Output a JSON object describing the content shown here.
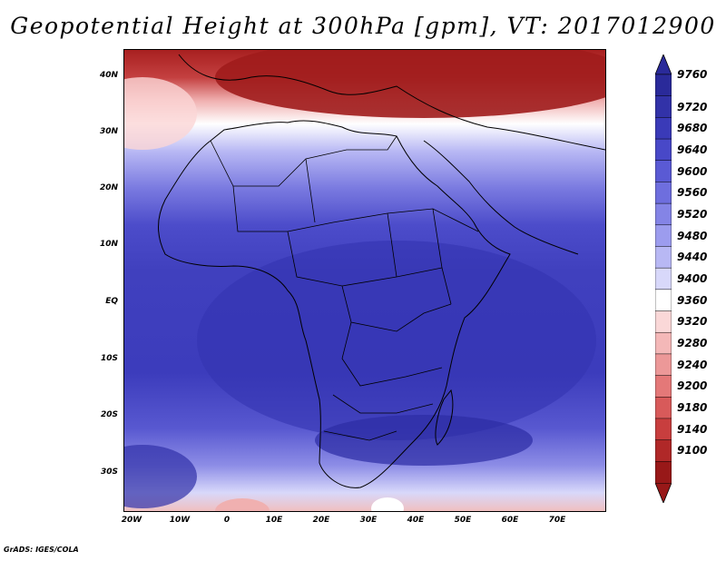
{
  "title": "Geopotential Height at 300hPa [gpm], VT: 2017012900",
  "credit": "GrADS: IGES/COLA",
  "lat_labels": [
    "40N",
    "30N",
    "20N",
    "10N",
    "EQ",
    "10S",
    "20S",
    "30S"
  ],
  "lon_labels": [
    "20W",
    "10W",
    "0",
    "10E",
    "20E",
    "30E",
    "40E",
    "50E",
    "60E",
    "70E"
  ],
  "colorbar": {
    "levels": [
      "9760",
      "9720",
      "9680",
      "9640",
      "9600",
      "9560",
      "9520",
      "9480",
      "9440",
      "9400",
      "9360",
      "9320",
      "9280",
      "9240",
      "9200",
      "9180",
      "9140",
      "9100"
    ],
    "colors": [
      "#2a2a9a",
      "#3232a8",
      "#3a3ab8",
      "#4848c8",
      "#5a5ad4",
      "#6e6ede",
      "#8484e6",
      "#9c9cee",
      "#b8b8f4",
      "#d8d8fa",
      "#ffffff",
      "#fad8d8",
      "#f4b8b8",
      "#ec9898",
      "#e47878",
      "#d85a5a",
      "#c83e3e",
      "#b02828",
      "#981818"
    ]
  }
}
